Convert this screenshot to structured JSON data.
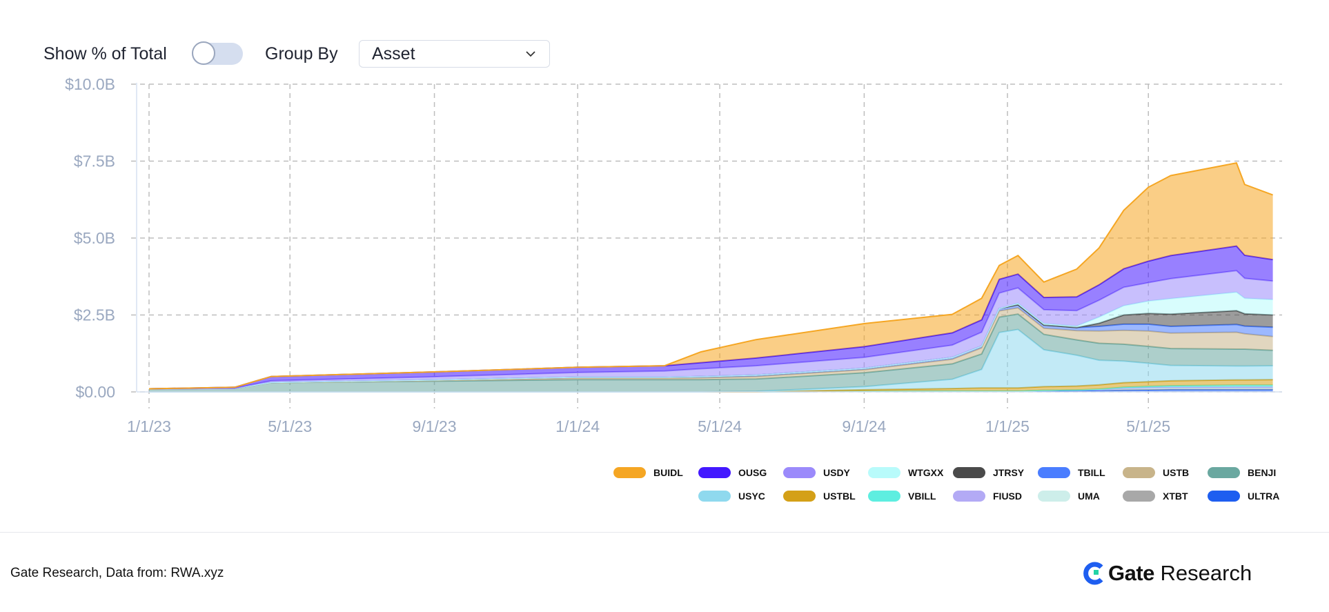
{
  "controls": {
    "show_percent_label": "Show % of Total",
    "show_percent_on": false,
    "group_by_label": "Group By",
    "group_by_value": "Asset"
  },
  "footer": {
    "source": "Gate Research, Data from:  RWA.xyz",
    "logo_bold": "Gate",
    "logo_rest": "Research"
  },
  "chart_data": {
    "type": "area",
    "stacked": true,
    "title": "",
    "xlabel": "",
    "ylabel": "",
    "ylim": [
      0,
      10
    ],
    "y_unit": "USD billions",
    "y_ticks": [
      0,
      2.5,
      5,
      7.5,
      10
    ],
    "y_tick_labels": [
      "$0.00",
      "$2.5B",
      "$5.0B",
      "$7.5B",
      "$10.0B"
    ],
    "x_ticks": [
      "2023-01-01",
      "2023-05-01",
      "2023-09-01",
      "2024-01-01",
      "2024-05-01",
      "2024-09-01",
      "2025-01-01",
      "2025-05-01"
    ],
    "x_tick_labels": [
      "1/1/23",
      "5/1/23",
      "9/1/23",
      "1/1/24",
      "5/1/24",
      "9/1/24",
      "1/1/25",
      "5/1/25"
    ],
    "grid": true,
    "legend_position": "bottom-right",
    "x": [
      "2023-01-01",
      "2023-03-15",
      "2023-04-15",
      "2023-09-01",
      "2024-01-01",
      "2024-03-15",
      "2024-04-15",
      "2024-06-01",
      "2024-09-01",
      "2024-11-15",
      "2024-12-10",
      "2024-12-25",
      "2025-01-10",
      "2025-02-01",
      "2025-03-01",
      "2025-03-20",
      "2025-04-10",
      "2025-05-01",
      "2025-05-20",
      "2025-07-15",
      "2025-07-22",
      "2025-08-15"
    ],
    "series": [
      {
        "name": "ULTRA",
        "color": "#1e5ef0",
        "values": [
          0,
          0,
          0,
          0,
          0,
          0,
          0,
          0,
          0.02,
          0.03,
          0.03,
          0.03,
          0.03,
          0.03,
          0.04,
          0.05,
          0.06,
          0.07,
          0.08,
          0.08,
          0.08,
          0.08
        ]
      },
      {
        "name": "XTBT",
        "color": "#a8a8a8",
        "values": [
          0,
          0,
          0,
          0,
          0,
          0,
          0,
          0,
          0,
          0,
          0,
          0,
          0,
          0.02,
          0.02,
          0.02,
          0.02,
          0.02,
          0.02,
          0.02,
          0.02,
          0.02
        ]
      },
      {
        "name": "UMA",
        "color": "#cdeeea",
        "values": [
          0,
          0,
          0,
          0,
          0,
          0,
          0,
          0,
          0,
          0,
          0,
          0,
          0,
          0,
          0,
          0,
          0.02,
          0.02,
          0.02,
          0.02,
          0.02,
          0.02
        ]
      },
      {
        "name": "FIUSD",
        "color": "#b3aaf5",
        "values": [
          0,
          0,
          0,
          0,
          0,
          0,
          0,
          0,
          0,
          0,
          0,
          0,
          0,
          0,
          0,
          0,
          0.02,
          0.03,
          0.03,
          0.04,
          0.04,
          0.04
        ]
      },
      {
        "name": "VBILL",
        "color": "#5eeee0",
        "values": [
          0,
          0,
          0,
          0,
          0,
          0,
          0,
          0,
          0,
          0,
          0,
          0,
          0,
          0,
          0,
          0.02,
          0.03,
          0.04,
          0.05,
          0.06,
          0.06,
          0.06
        ]
      },
      {
        "name": "USTBL",
        "color": "#d4a017",
        "values": [
          0,
          0,
          0,
          0,
          0,
          0,
          0,
          0,
          0.05,
          0.08,
          0.1,
          0.1,
          0.1,
          0.12,
          0.13,
          0.14,
          0.15,
          0.15,
          0.16,
          0.17,
          0.17,
          0.18
        ]
      },
      {
        "name": "USYC",
        "color": "#8fd9ee",
        "values": [
          0,
          0,
          0,
          0,
          0,
          0,
          0,
          0.02,
          0.1,
          0.3,
          0.6,
          1.8,
          1.9,
          1.2,
          1.0,
          0.8,
          0.7,
          0.6,
          0.5,
          0.45,
          0.45,
          0.45
        ]
      },
      {
        "name": "BENJI",
        "color": "#6aa8a0",
        "values": [
          0.1,
          0.12,
          0.3,
          0.35,
          0.4,
          0.4,
          0.4,
          0.4,
          0.45,
          0.5,
          0.5,
          0.5,
          0.5,
          0.5,
          0.5,
          0.55,
          0.55,
          0.55,
          0.55,
          0.55,
          0.55,
          0.5
        ]
      },
      {
        "name": "USTB",
        "color": "#c8b48a",
        "values": [
          0,
          0,
          0,
          0.02,
          0.05,
          0.05,
          0.06,
          0.08,
          0.1,
          0.15,
          0.2,
          0.2,
          0.2,
          0.2,
          0.3,
          0.4,
          0.45,
          0.5,
          0.5,
          0.55,
          0.5,
          0.45
        ]
      },
      {
        "name": "TBILL",
        "color": "#4a7dff",
        "values": [
          0,
          0,
          0.01,
          0.02,
          0.03,
          0.03,
          0.04,
          0.05,
          0.05,
          0.06,
          0.06,
          0.08,
          0.1,
          0.1,
          0.1,
          0.15,
          0.2,
          0.22,
          0.22,
          0.25,
          0.25,
          0.3
        ]
      },
      {
        "name": "JTRSY",
        "color": "#4a4a4a",
        "values": [
          0,
          0,
          0,
          0,
          0,
          0,
          0,
          0,
          0,
          0,
          0,
          0,
          0,
          0,
          0,
          0.1,
          0.3,
          0.35,
          0.4,
          0.45,
          0.4,
          0.4
        ]
      },
      {
        "name": "WTGXX",
        "color": "#b8fbfb",
        "values": [
          0,
          0,
          0,
          0,
          0,
          0,
          0,
          0,
          0,
          0,
          0,
          0,
          0.05,
          0.05,
          0.05,
          0.2,
          0.3,
          0.4,
          0.5,
          0.6,
          0.5,
          0.5
        ]
      },
      {
        "name": "USDY",
        "color": "#9b8afb",
        "values": [
          0,
          0,
          0.05,
          0.1,
          0.15,
          0.2,
          0.25,
          0.3,
          0.35,
          0.4,
          0.45,
          0.5,
          0.5,
          0.45,
          0.5,
          0.55,
          0.6,
          0.6,
          0.65,
          0.7,
          0.65,
          0.6
        ]
      },
      {
        "name": "OUSG",
        "color": "#4318ff",
        "values": [
          0,
          0.03,
          0.14,
          0.16,
          0.17,
          0.17,
          0.2,
          0.25,
          0.35,
          0.4,
          0.4,
          0.45,
          0.45,
          0.4,
          0.45,
          0.5,
          0.6,
          0.7,
          0.75,
          0.8,
          0.75,
          0.7
        ]
      },
      {
        "name": "BUIDL",
        "color": "#f5a623",
        "values": [
          0,
          0,
          0,
          0,
          0,
          0,
          0.35,
          0.6,
          0.75,
          0.6,
          0.7,
          0.45,
          0.6,
          0.5,
          0.9,
          1.2,
          1.9,
          2.4,
          2.6,
          2.7,
          2.3,
          2.1
        ]
      }
    ],
    "legend_rows": [
      [
        "BUIDL",
        "OUSG",
        "USDY",
        "WTGXX",
        "JTRSY",
        "TBILL",
        "USTB",
        "BENJI"
      ],
      [
        "USYC",
        "USTBL",
        "VBILL",
        "FIUSD",
        "UMA",
        "XTBT",
        "ULTRA"
      ]
    ]
  }
}
